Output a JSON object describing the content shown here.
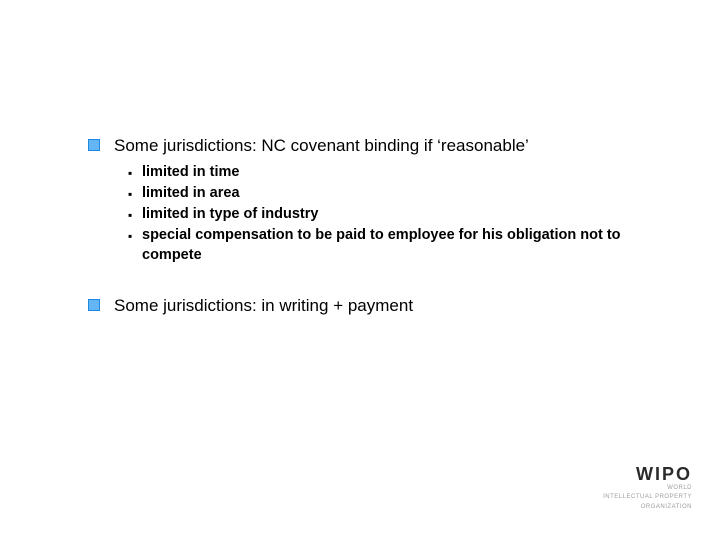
{
  "slide": {
    "background_color": "#ffffff",
    "text_color": "#000000",
    "bullet_border_color": "#1e88e5",
    "bullet_fill_color": "#64b5f6",
    "main_fontsize": 17,
    "sub_fontsize": 14.5,
    "sub_fontweight": 700,
    "items": [
      {
        "text": "Some jurisdictions: NC covenant binding if ‘reasonable’",
        "subitems": [
          "limited in time",
          "limited in area",
          "limited in type of industry",
          "special compensation to be paid to employee for his obligation not to compete"
        ]
      },
      {
        "text": "Some jurisdictions: in writing + payment",
        "subitems": []
      }
    ]
  },
  "logo": {
    "main": "WIPO",
    "sub_line1": "WORLD",
    "sub_line2": "INTELLECTUAL PROPERTY",
    "sub_line3": "ORGANIZATION",
    "main_color": "#2b2b2b",
    "sub_color": "#9e9e9e"
  }
}
